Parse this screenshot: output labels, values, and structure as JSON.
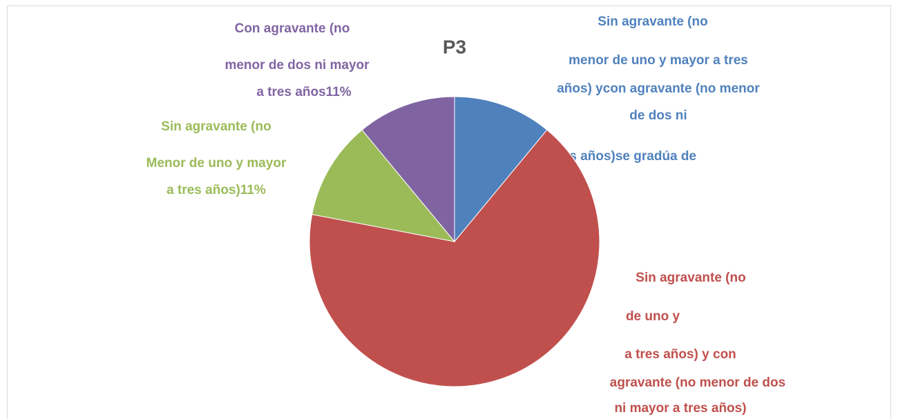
{
  "chart_data": {
    "type": "pie",
    "title": "P3",
    "categories": [
      [
        "Sin agravante (no",
        "menor de uno y mayor a tres",
        "años) ycon agravante (no menor",
        "de dos ni",
        "mayor a tres años)se gradúa de"
      ],
      [
        "Sin agravante (no",
        "de uno y",
        "a tres años) y con",
        "agravante (no menor de dos",
        "ni mayor a tres años)"
      ],
      [
        "Sin agravante (no",
        "Menor de uno y mayor",
        "a tres años)11%"
      ],
      [
        "Con agravante (no",
        "menor de dos ni mayor",
        "a tres años11%"
      ]
    ],
    "values": [
      11,
      67,
      11,
      11
    ],
    "colors": [
      "#4f81bd",
      "#c0504d",
      "#9bbb59",
      "#8064a2"
    ],
    "start_angle": 0,
    "direction": "clockwise"
  }
}
